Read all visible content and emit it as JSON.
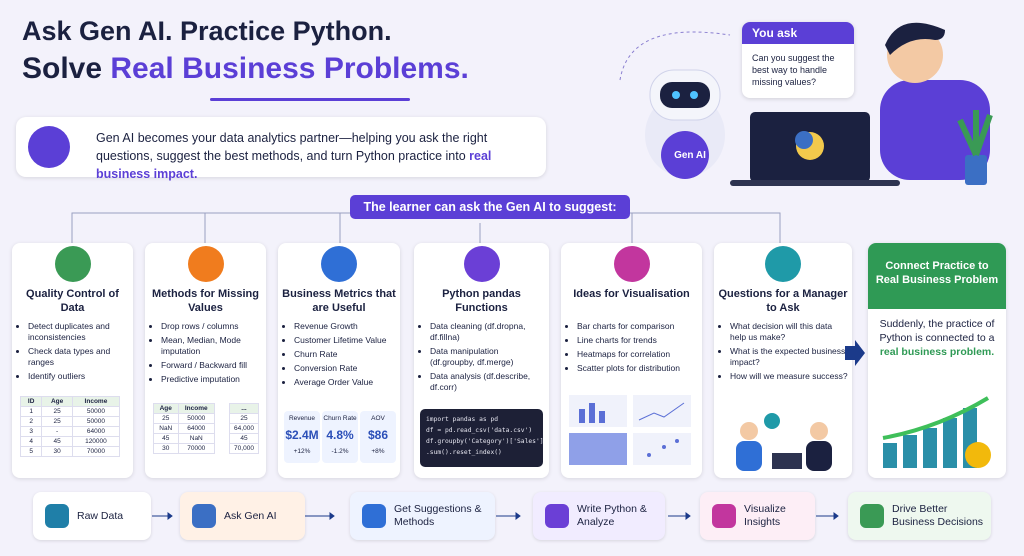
{
  "header": {
    "title_line1": "Ask Gen AI. Practice Python.",
    "title_line2_prefix": "Solve",
    "title_highlight": "Real Business Problems."
  },
  "intro": {
    "text": "Gen AI becomes your data analytics partner—helping you ask the right questions, suggest the best methods, and turn Python practice into",
    "highlight": "real business impact."
  },
  "hero": {
    "chat_label": "You ask",
    "chat_question": "Can you suggest the best way to handle missing values?",
    "robot_label": "Gen AI"
  },
  "banner": "The learner can ask the Gen AI to suggest:",
  "cards": [
    {
      "title": "Quality Control of Data",
      "items": [
        "Detect duplicates and inconsistencies",
        "Check data types and ranges",
        "Identify outliers"
      ],
      "table": [
        [
          "ID",
          "Age",
          "Income"
        ],
        [
          "1",
          "25",
          "50000"
        ],
        [
          "2",
          "25",
          "50000"
        ],
        [
          "3",
          "-",
          "64000"
        ],
        [
          "4",
          "45",
          "120000"
        ],
        [
          "5",
          "30",
          "70000"
        ]
      ]
    },
    {
      "title": "Methods for Missing Values",
      "items": [
        "Drop rows / columns",
        "Mean, Median, Mode imputation",
        "Forward / Backward fill",
        "Predictive imputation"
      ],
      "table": [
        [
          "Age",
          "Income"
        ],
        [
          "25",
          "50000"
        ],
        [
          "NaN",
          "64000"
        ],
        [
          "45",
          "NaN"
        ],
        [
          "30",
          "70000"
        ]
      ],
      "table_after": [
        [
          "..."
        ],
        [
          "25"
        ],
        [
          "64,000"
        ],
        [
          "45"
        ],
        [
          "70,000"
        ]
      ]
    },
    {
      "title": "Business Metrics that are Useful",
      "items": [
        "Revenue Growth",
        "Customer Lifetime Value",
        "Churn Rate",
        "Conversion Rate",
        "Average Order Value"
      ],
      "metrics": [
        {
          "label": "Revenue",
          "value": "$2.4M",
          "change": "+12%"
        },
        {
          "label": "Churn Rate",
          "value": "4.8%",
          "change": "-1.2%"
        },
        {
          "label": "AOV",
          "value": "$86",
          "change": "+8%"
        }
      ]
    },
    {
      "title": "Python pandas Functions",
      "items": [
        "Data cleaning (df.dropna, df.fillna)",
        "Data manipulation (df.groupby, df.merge)",
        "Data analysis (df.describe, df.corr)"
      ],
      "code": [
        "import pandas as pd",
        "df = pd.read_csv('data.csv')",
        "df.groupby('Category')['Sales']",
        ".sum().reset_index()"
      ]
    },
    {
      "title": "Ideas for Visualisation",
      "items": [
        "Bar charts for comparison",
        "Line charts for trends",
        "Heatmaps for correlation",
        "Scatter plots for distribution"
      ]
    },
    {
      "title": "Questions for a Manager to Ask",
      "items": [
        "What decision will this data help us make?",
        "What is the expected business impact?",
        "How will we measure success?"
      ]
    }
  ],
  "final": {
    "title": "Connect Practice to Real Business Problem",
    "text": "Suddenly, the practice of Python is connected to a",
    "highlight": "real business problem."
  },
  "flow": [
    "Raw Data",
    "Ask Gen AI",
    "Get Suggestions & Methods",
    "Write Python & Analyze",
    "Visualize Insights",
    "Drive Better Business Decisions"
  ]
}
